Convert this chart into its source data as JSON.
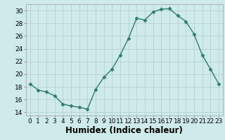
{
  "x": [
    0,
    1,
    2,
    3,
    4,
    5,
    6,
    7,
    8,
    9,
    10,
    11,
    12,
    13,
    14,
    15,
    16,
    17,
    18,
    19,
    20,
    21,
    22,
    23
  ],
  "y": [
    18.5,
    17.5,
    17.2,
    16.6,
    15.3,
    15.0,
    14.8,
    14.5,
    17.6,
    19.5,
    20.8,
    23.0,
    25.6,
    28.8,
    28.5,
    29.8,
    30.2,
    30.3,
    29.2,
    28.3,
    26.3,
    23.0,
    20.8,
    18.5
  ],
  "xlabel": "Humidex (Indice chaleur)",
  "ylim": [
    13.5,
    31.0
  ],
  "xlim": [
    -0.5,
    23.5
  ],
  "yticks": [
    14,
    16,
    18,
    20,
    22,
    24,
    26,
    28,
    30
  ],
  "xticks": [
    0,
    1,
    2,
    3,
    4,
    5,
    6,
    7,
    8,
    9,
    10,
    11,
    12,
    13,
    14,
    15,
    16,
    17,
    18,
    19,
    20,
    21,
    22,
    23
  ],
  "line_color": "#2e7d6b",
  "marker": "D",
  "marker_size": 2.5,
  "bg_color": "#ceeaea",
  "grid_color": "#b8d4d4",
  "tick_label_fontsize": 6.5,
  "xlabel_fontsize": 8.5
}
